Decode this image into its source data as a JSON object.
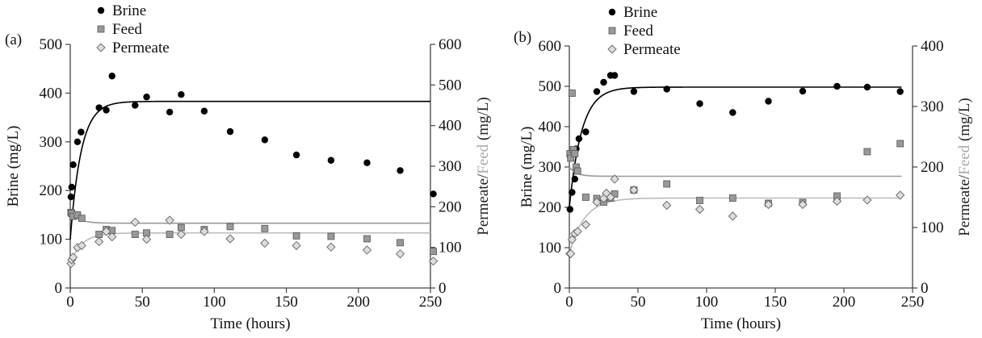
{
  "chart_data": [
    {
      "type": "scatter",
      "panel_label": "(a)",
      "xlabel": "Time (hours)",
      "ylabel_left": "Brine (mg/L)",
      "ylabel_right_parts": [
        {
          "text": "Permeate/",
          "color": "#222222"
        },
        {
          "text": "Feed",
          "color": "#aaaaaa"
        },
        {
          "text": " (mg/L)",
          "color": "#222222"
        }
      ],
      "xlim": [
        0,
        250
      ],
      "xticks": [
        0,
        50,
        100,
        150,
        200,
        250
      ],
      "ylim_left": [
        0,
        500
      ],
      "yticks_left": [
        0,
        100,
        200,
        300,
        400,
        500
      ],
      "ylim_right": [
        0,
        600
      ],
      "yticks_right": [
        0,
        100,
        200,
        300,
        400,
        500,
        600
      ],
      "legend": [
        "Brine",
        "Feed",
        "Permeate"
      ],
      "series": [
        {
          "name": "Brine",
          "axis": "left",
          "marker": "circle",
          "color": "#000000",
          "x": [
            0.5,
            1,
            2,
            5,
            7.5,
            20,
            25,
            29,
            45,
            53,
            69,
            77,
            93,
            111,
            135,
            157,
            181,
            206,
            229,
            252
          ],
          "y": [
            187,
            207,
            253,
            300,
            320,
            370,
            365,
            435,
            375,
            392,
            361,
            397,
            363,
            321,
            304,
            273,
            262,
            257,
            241,
            193
          ]
        },
        {
          "name": "Feed",
          "axis": "left",
          "marker": "square",
          "color": "#888888",
          "x": [
            0.5,
            1,
            2,
            5,
            8,
            20,
            25,
            29,
            45,
            53,
            69,
            77,
            93,
            111,
            135,
            157,
            181,
            206,
            229,
            252
          ],
          "y": [
            155,
            153,
            147,
            150,
            143,
            110,
            120,
            118,
            110,
            113,
            110,
            124,
            120,
            126,
            122,
            107,
            106,
            101,
            93,
            75
          ]
        },
        {
          "name": "Permeate",
          "axis": "left",
          "marker": "diamond",
          "color": "#aaaaaa",
          "x": [
            0.5,
            1,
            2,
            5,
            8,
            20,
            25,
            29,
            45,
            53,
            69,
            77,
            93,
            111,
            135,
            157,
            181,
            206,
            229,
            252
          ],
          "y": [
            50,
            58,
            63,
            83,
            87,
            95,
            116,
            105,
            135,
            100,
            139,
            110,
            116,
            101,
            92,
            87,
            84,
            78,
            70,
            55
          ]
        },
        {
          "name": "Brine fit",
          "axis": "left",
          "kind": "fit",
          "color": "#000000",
          "start": 100,
          "plateau": 383,
          "tau": 7.5,
          "xmax": 250
        },
        {
          "name": "Feed fit",
          "axis": "left",
          "kind": "fit",
          "color": "#999999",
          "start": 155,
          "plateau": 133,
          "tau": 6,
          "xmax": 250
        },
        {
          "name": "Permeate fit",
          "axis": "left",
          "kind": "fit",
          "color": "#bbbbbb",
          "start": 50,
          "plateau": 113,
          "tau": 8,
          "xmax": 250
        }
      ]
    },
    {
      "type": "scatter",
      "panel_label": "(b)",
      "xlabel": "Time (hours)",
      "ylabel_left": "Brine (mg/L)",
      "ylabel_right_parts": [
        {
          "text": "Permeate/",
          "color": "#222222"
        },
        {
          "text": "Feed",
          "color": "#aaaaaa"
        },
        {
          "text": " (mg/L)",
          "color": "#222222"
        }
      ],
      "xlim": [
        0,
        250
      ],
      "xticks": [
        0,
        50,
        100,
        150,
        200,
        250
      ],
      "ylim_left": [
        0,
        600
      ],
      "yticks_left": [
        0,
        100,
        200,
        300,
        400,
        500,
        600
      ],
      "ylim_right": [
        0,
        400
      ],
      "yticks_right": [
        0,
        100,
        200,
        300,
        400
      ],
      "legend": [
        "Brine",
        "Feed",
        "Permeate"
      ],
      "series": [
        {
          "name": "Brine",
          "axis": "left",
          "marker": "circle",
          "color": "#000000",
          "x": [
            0.5,
            2,
            4,
            5,
            7,
            12,
            20,
            25,
            30,
            33,
            47,
            71,
            95,
            119,
            145,
            170,
            195,
            217,
            241
          ],
          "y": [
            195,
            237,
            270,
            345,
            370,
            387,
            487,
            510,
            527,
            527,
            487,
            493,
            457,
            435,
            463,
            488,
            500,
            498,
            487
          ]
        },
        {
          "name": "Feed",
          "axis": "left",
          "marker": "square",
          "color": "#888888",
          "x": [
            0.5,
            1,
            2,
            3,
            4,
            5,
            6,
            12,
            20,
            25,
            30,
            33,
            47,
            71,
            95,
            119,
            145,
            170,
            195,
            217,
            241
          ],
          "y": [
            333,
            322,
            483,
            343,
            333,
            300,
            290,
            225,
            222,
            213,
            223,
            233,
            243,
            258,
            217,
            223,
            210,
            212,
            228,
            338,
            358
          ]
        },
        {
          "name": "Permeate",
          "axis": "left",
          "marker": "diamond",
          "color": "#aaaaaa",
          "x": [
            0.5,
            1,
            2,
            4,
            6,
            12,
            20,
            25,
            27,
            30,
            33,
            47,
            71,
            95,
            119,
            145,
            170,
            195,
            217,
            241
          ],
          "y": [
            85,
            85,
            120,
            135,
            140,
            157,
            213,
            222,
            235,
            225,
            270,
            243,
            205,
            195,
            178,
            207,
            207,
            215,
            218,
            230
          ]
        },
        {
          "name": "Brine fit",
          "axis": "left",
          "kind": "fit",
          "color": "#000000",
          "start": 200,
          "plateau": 498,
          "tau": 9,
          "xmax": 242
        },
        {
          "name": "Feed fit",
          "axis": "left",
          "kind": "fit",
          "color": "#999999",
          "start": 300,
          "plateau": 277,
          "tau": 5,
          "xmax": 242
        },
        {
          "name": "Permeate fit",
          "axis": "left",
          "kind": "fit",
          "color": "#bbbbbb",
          "start": 85,
          "plateau": 223,
          "tau": 11,
          "xmax": 242
        }
      ]
    }
  ]
}
